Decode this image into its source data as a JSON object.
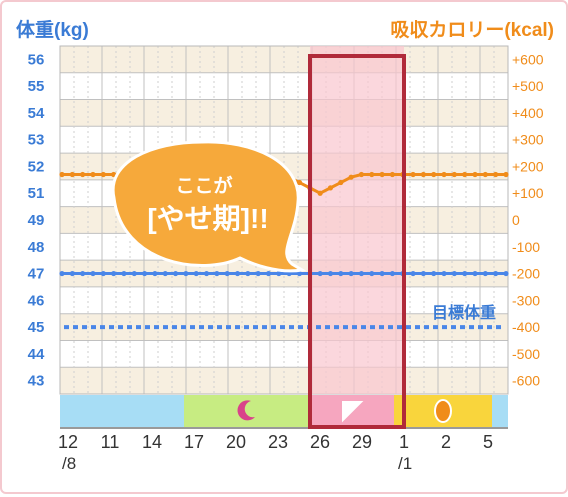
{
  "header": {
    "left_title": "体重(kg)",
    "right_title": "吸収カロリー(kcal)"
  },
  "callout": {
    "line1": "ここが",
    "line2": "[やせ期]!!"
  },
  "colors": {
    "weight_axis": "#3a7bd5",
    "calorie_axis": "#f08c1a",
    "weight_line": "#4a86e8",
    "calorie_line": "#f08c1a",
    "highlight_fill": "#f9c6cf",
    "highlight_border": "#b02a3a",
    "band_beige": "#f7efe0",
    "grid": "#c0c0c0",
    "callout": "#f6a93b",
    "phase_blue": "#a7ddf5",
    "phase_green": "#c7ec82",
    "phase_pink": "#f6a6bf",
    "phase_yellow": "#f9d53c"
  },
  "chart_data": {
    "type": "line",
    "x_tick_labels": [
      "12",
      "11",
      "14",
      "17",
      "20",
      "23",
      "26",
      "29",
      "1",
      "2",
      "5"
    ],
    "x_tick_sublabels": [
      "/8",
      "",
      "",
      "",
      "",
      "",
      "",
      "",
      "/1",
      "",
      ""
    ],
    "left_axis": {
      "ticks": [
        "56",
        "55",
        "54",
        "53",
        "52",
        "51",
        "49",
        "48",
        "47",
        "46",
        "45",
        "44",
        "43"
      ]
    },
    "right_axis": {
      "ticks": [
        "+600",
        "+500",
        "+400",
        "+300",
        "+200",
        "+100",
        "0",
        "-100",
        "-200",
        "-300",
        "-400",
        "-500",
        "-600"
      ]
    },
    "highlight_range": {
      "from": "26",
      "to": "1"
    },
    "target_weight": {
      "label": "目標体重",
      "value": 45
    },
    "series": [
      {
        "key": "calorie",
        "axis": "right",
        "values": [
          170,
          170,
          170,
          170,
          170,
          170,
          170,
          170,
          170,
          170,
          170,
          170,
          170,
          170,
          170,
          170,
          170,
          170,
          170,
          170,
          170,
          165,
          160,
          140,
          120,
          100,
          120,
          140,
          160,
          170,
          170,
          170,
          170,
          170,
          170,
          170,
          170,
          170,
          170,
          170,
          170,
          170,
          170,
          170
        ]
      },
      {
        "key": "weight",
        "axis": "left",
        "values": [
          47,
          47,
          47,
          47,
          47,
          47,
          47,
          47,
          47,
          47,
          47,
          47,
          47,
          47,
          47,
          47,
          47,
          47,
          47,
          47,
          47,
          47,
          47,
          47,
          47,
          47,
          47,
          47,
          47,
          47,
          47,
          47,
          47,
          47,
          47,
          47,
          47,
          47,
          47,
          47,
          47,
          47,
          47,
          47
        ]
      }
    ],
    "phase_bar": [
      {
        "phase": "period",
        "color": "blue",
        "icon": "none",
        "from": "12",
        "to": "17"
      },
      {
        "phase": "moon",
        "color": "green",
        "icon": "crescent-moon-icon",
        "from": "17",
        "to": "26"
      },
      {
        "phase": "flag",
        "color": "pink",
        "icon": "flag-icon",
        "from": "26",
        "to": "1"
      },
      {
        "phase": "egg",
        "color": "yellow",
        "icon": "egg-icon",
        "from": "1",
        "to": "5"
      },
      {
        "phase": "end",
        "color": "blue",
        "icon": "none",
        "from": "5",
        "to": "5"
      }
    ]
  }
}
